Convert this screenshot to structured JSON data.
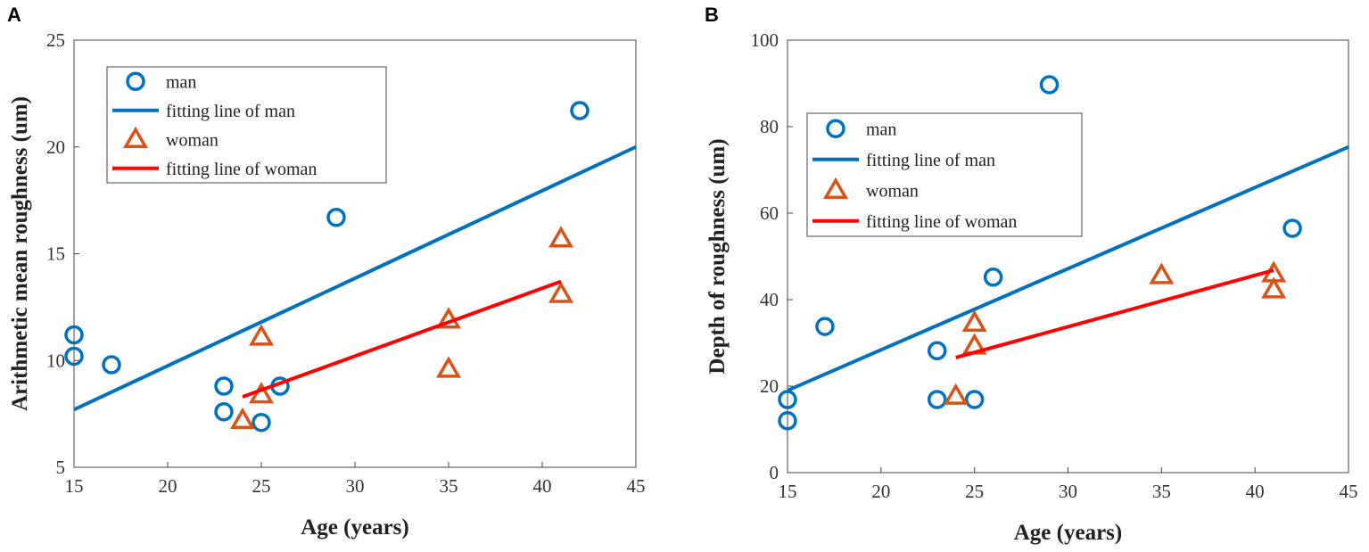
{
  "colors": {
    "man": "#0072BD",
    "woman": "#D95319",
    "woman_fit": "#FF0000"
  },
  "chart_data": [
    {
      "type": "scatter",
      "panel": "A",
      "xlabel": "Age (years)",
      "ylabel": "Arithmetic mean roughness (um)",
      "xlim": [
        15,
        45
      ],
      "ylim": [
        5,
        25
      ],
      "xticks": [
        15,
        20,
        25,
        30,
        35,
        40,
        45
      ],
      "yticks": [
        5,
        10,
        15,
        20,
        25
      ],
      "legend": [
        "man",
        "fitting line of man",
        "woman",
        "fitting line of woman"
      ],
      "legend_position": "top-left",
      "series": [
        {
          "name": "man",
          "marker": "circle",
          "points": [
            [
              15,
              11.2
            ],
            [
              15,
              10.2
            ],
            [
              17,
              9.8
            ],
            [
              23,
              8.8
            ],
            [
              23,
              7.6
            ],
            [
              25,
              7.1
            ],
            [
              26,
              8.8
            ],
            [
              29,
              16.7
            ],
            [
              42,
              21.7
            ]
          ]
        },
        {
          "name": "fitting line of man",
          "line": [
            [
              15,
              7.7
            ],
            [
              45,
              20.0
            ]
          ]
        },
        {
          "name": "woman",
          "marker": "triangle",
          "points": [
            [
              24,
              7.2
            ],
            [
              25,
              8.4
            ],
            [
              25,
              11.1
            ],
            [
              35,
              11.9
            ],
            [
              35,
              9.6
            ],
            [
              41,
              15.7
            ],
            [
              41,
              13.1
            ]
          ]
        },
        {
          "name": "fitting line of woman",
          "line": [
            [
              24,
              8.3
            ],
            [
              41,
              13.7
            ]
          ]
        }
      ]
    },
    {
      "type": "scatter",
      "panel": "B",
      "xlabel": "Age (years)",
      "ylabel": "Depth of roughness (um)",
      "xlim": [
        15,
        45
      ],
      "ylim": [
        0,
        100
      ],
      "xticks": [
        15,
        20,
        25,
        30,
        35,
        40,
        45
      ],
      "yticks": [
        0,
        20,
        40,
        60,
        80,
        100
      ],
      "legend": [
        "man",
        "fitting line of man",
        "woman",
        "fitting line of woman"
      ],
      "legend_position": "top-left",
      "series": [
        {
          "name": "man",
          "marker": "circle",
          "points": [
            [
              15,
              16.9
            ],
            [
              15,
              12.0
            ],
            [
              17,
              33.8
            ],
            [
              23,
              28.2
            ],
            [
              23,
              16.9
            ],
            [
              25,
              16.9
            ],
            [
              26,
              45.2
            ],
            [
              29,
              89.7
            ],
            [
              42,
              56.5
            ]
          ]
        },
        {
          "name": "fitting line of man",
          "line": [
            [
              15,
              19.0
            ],
            [
              45,
              75.3
            ]
          ]
        },
        {
          "name": "woman",
          "marker": "triangle",
          "points": [
            [
              24,
              17.7
            ],
            [
              25,
              34.6
            ],
            [
              25,
              29.3
            ],
            [
              35,
              45.6
            ],
            [
              41,
              46.0
            ],
            [
              41,
              42.3
            ]
          ]
        },
        {
          "name": "fitting line of woman",
          "line": [
            [
              24,
              26.6
            ],
            [
              41,
              46.8
            ]
          ]
        }
      ]
    }
  ]
}
